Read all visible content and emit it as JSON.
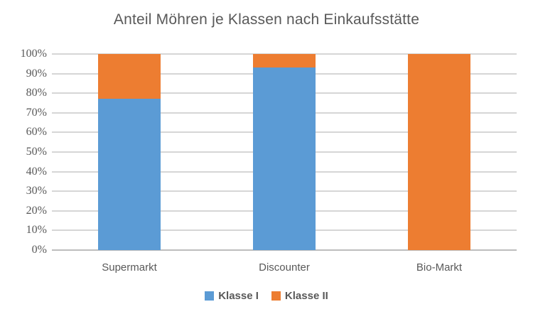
{
  "title": "Anteil Möhren je Klassen nach Einkaufsstätte",
  "chart_data": {
    "type": "bar",
    "subtype": "stacked-100-percent",
    "title": "Anteil Möhren je Klassen nach Einkaufsstätte",
    "categories": [
      "Supermarkt",
      "Discounter",
      "Bio-Markt"
    ],
    "series": [
      {
        "name": "Klasse I",
        "color": "#5B9BD5",
        "values": [
          77,
          93,
          0
        ]
      },
      {
        "name": "Klasse II",
        "color": "#ED7D31",
        "values": [
          23,
          7,
          100
        ]
      }
    ],
    "yticks": [
      "0%",
      "10%",
      "20%",
      "30%",
      "40%",
      "50%",
      "60%",
      "70%",
      "80%",
      "90%",
      "100%"
    ],
    "ylim": [
      0,
      100
    ],
    "xlabel": "",
    "ylabel": "",
    "grid": true,
    "legend_position": "bottom"
  },
  "colors": {
    "title_text": "#595959",
    "axis_text": "#595959",
    "gridline": "#D6D6D6",
    "axis_line": "#BDBDBD",
    "background": "#FFFFFF"
  }
}
